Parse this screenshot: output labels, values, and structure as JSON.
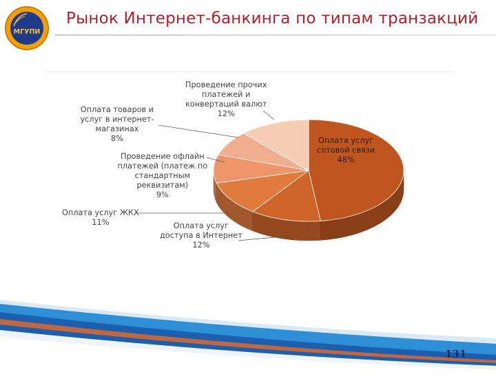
{
  "header": {
    "title": "Рынок Интернет-банкинга по типам транзакций",
    "logo_text": "МГУПИ"
  },
  "footer": {
    "page_number": "131"
  },
  "chart_data": {
    "type": "pie",
    "three_d": true,
    "title": "",
    "slices": [
      {
        "label": "Оплата услуг\nсотовой связи",
        "value": 48,
        "value_label": "48%",
        "color": "#c0561f"
      },
      {
        "label": "Оплата услуг\nдоступа в Интернет",
        "value": 12,
        "value_label": "12%",
        "color": "#cf6429"
      },
      {
        "label": "Оплата услуг ЖКХ",
        "value": 11,
        "value_label": "11%",
        "color": "#e07a3d"
      },
      {
        "label": "Проведение офлайн\nплатежей (платеж по\nстандартным\nреквизитам)",
        "value": 9,
        "value_label": "9%",
        "color": "#ec946a"
      },
      {
        "label": "Оплата товаров и\nуслуг в интернет-\nмагазинах",
        "value": 8,
        "value_label": "8%",
        "color": "#f1ae8e"
      },
      {
        "label": "Проведение прочих\nплатежей и\nконвертаций валют",
        "value": 12,
        "value_label": "12%",
        "color": "#f5cdb4"
      }
    ]
  }
}
